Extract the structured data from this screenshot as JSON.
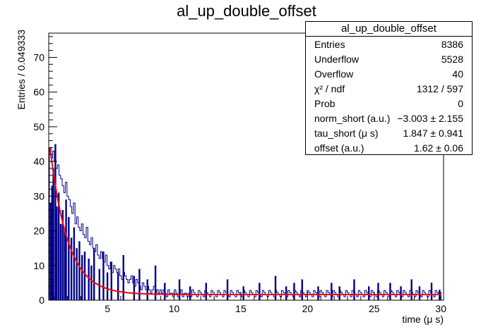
{
  "chart_data": {
    "type": "bar",
    "title": "al_up_double_offset",
    "xlabel": "time (μ s)",
    "ylabel": "Entries / 0.049333",
    "xlim": [
      0.6,
      30.2
    ],
    "ylim": [
      0,
      77
    ],
    "xticks": [
      5,
      10,
      15,
      20,
      25,
      30
    ],
    "yticks": [
      0,
      10,
      20,
      30,
      40,
      50,
      60,
      70
    ],
    "colors": {
      "histogram": "#00008b",
      "fit": "#ff0000",
      "fit_component": "#00aa00"
    },
    "histogram": {
      "x_start": 0.65,
      "bin_width": 0.049333,
      "values": [
        44,
        41,
        43,
        40,
        38,
        39,
        36,
        35,
        33,
        31,
        34,
        30,
        29,
        27,
        25,
        28,
        22,
        24,
        21,
        20,
        22,
        19,
        18,
        21,
        17,
        16,
        18,
        15,
        14,
        16,
        13,
        12,
        14,
        12,
        11,
        13,
        10,
        9,
        11,
        8,
        10,
        9,
        8,
        9,
        7,
        6,
        8,
        7,
        6,
        5,
        6,
        7,
        5,
        4,
        6,
        5,
        4,
        3,
        5,
        4,
        3,
        4,
        3,
        2,
        3,
        4,
        2,
        3,
        2,
        3,
        2,
        3,
        2,
        1,
        3,
        2,
        2,
        1,
        3,
        2,
        1,
        2,
        3,
        1,
        2,
        2,
        1,
        2,
        1,
        3
      ],
      "spikes": [
        {
          "x": 0.75,
          "y": 28
        },
        {
          "x": 0.85,
          "y": 33
        },
        {
          "x": 0.95,
          "y": 38
        },
        {
          "x": 1.1,
          "y": 45
        },
        {
          "x": 1.2,
          "y": 27
        },
        {
          "x": 1.35,
          "y": 31
        },
        {
          "x": 1.5,
          "y": 22
        },
        {
          "x": 1.65,
          "y": 26
        },
        {
          "x": 1.8,
          "y": 20
        },
        {
          "x": 1.9,
          "y": 29
        },
        {
          "x": 2.1,
          "y": 24
        },
        {
          "x": 2.3,
          "y": 18
        },
        {
          "x": 2.5,
          "y": 21
        },
        {
          "x": 2.7,
          "y": 15
        },
        {
          "x": 2.9,
          "y": 17
        },
        {
          "x": 3.1,
          "y": 13
        },
        {
          "x": 3.3,
          "y": 14
        },
        {
          "x": 3.6,
          "y": 12
        },
        {
          "x": 3.8,
          "y": 10
        },
        {
          "x": 4.0,
          "y": 15
        },
        {
          "x": 4.4,
          "y": 9
        },
        {
          "x": 4.7,
          "y": 14
        },
        {
          "x": 5.0,
          "y": 8
        },
        {
          "x": 5.3,
          "y": 11
        },
        {
          "x": 5.8,
          "y": 8
        },
        {
          "x": 6.2,
          "y": 13
        },
        {
          "x": 7.0,
          "y": 7
        },
        {
          "x": 7.4,
          "y": 9
        },
        {
          "x": 8.0,
          "y": 6
        },
        {
          "x": 8.6,
          "y": 10
        },
        {
          "x": 9.3,
          "y": 5
        },
        {
          "x": 10.4,
          "y": 6
        },
        {
          "x": 11.2,
          "y": 4
        },
        {
          "x": 12.4,
          "y": 5
        },
        {
          "x": 14.0,
          "y": 6
        },
        {
          "x": 15.2,
          "y": 4
        },
        {
          "x": 16.4,
          "y": 5
        },
        {
          "x": 17.6,
          "y": 7
        },
        {
          "x": 18.4,
          "y": 4
        },
        {
          "x": 19.0,
          "y": 5
        },
        {
          "x": 19.6,
          "y": 6
        },
        {
          "x": 20.8,
          "y": 4
        },
        {
          "x": 21.8,
          "y": 5
        },
        {
          "x": 22.4,
          "y": 4
        },
        {
          "x": 23.5,
          "y": 6
        },
        {
          "x": 24.6,
          "y": 4
        },
        {
          "x": 25.3,
          "y": 5
        },
        {
          "x": 26.2,
          "y": 5
        },
        {
          "x": 27.0,
          "y": 4
        },
        {
          "x": 27.8,
          "y": 6
        },
        {
          "x": 28.4,
          "y": 4
        },
        {
          "x": 29.3,
          "y": 5
        },
        {
          "x": 29.9,
          "y": 3
        }
      ]
    },
    "fit": {
      "model": "norm_short*exp(-t/tau_short) + offset (drawn visually)",
      "amplitude_at_start": 44,
      "decay_tau": 1.33,
      "offset": 1.62,
      "x_start": 0.7,
      "x_end": 30
    }
  },
  "stats_box": {
    "title": "al_up_double_offset",
    "rows": [
      {
        "label": "Entries",
        "value": "8386"
      },
      {
        "label": "Underflow",
        "value": "5528"
      },
      {
        "label": "Overflow",
        "value": "40"
      },
      {
        "label": "χ² / ndf",
        "value": "1312 / 597"
      },
      {
        "label": "Prob",
        "value": "0"
      },
      {
        "label": "norm_short (a.u.)",
        "value": "−3.003 ± 2.155"
      },
      {
        "label": "tau_short (μ s)",
        "value": "1.847 ± 0.941"
      },
      {
        "label": "offset (a.u.)",
        "value": "1.62 ± 0.06"
      }
    ]
  }
}
